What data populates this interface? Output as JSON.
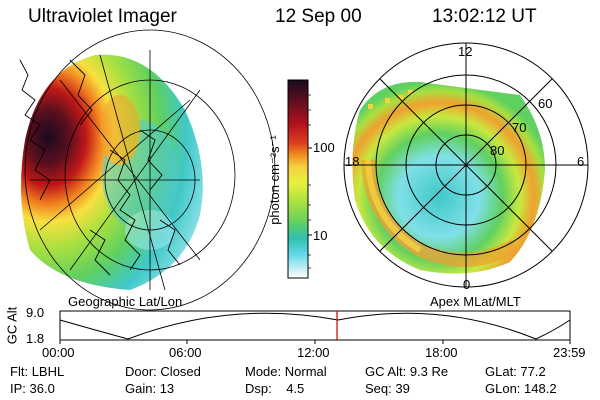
{
  "header": {
    "title": "Ultraviolet Imager",
    "date": "12 Sep 00",
    "time": "13:02:12 UT"
  },
  "geo_panel": {
    "label": "Geographic Lat/Lon"
  },
  "apex_panel": {
    "label": "Apex MLat/MLT",
    "mlt_labels": {
      "top": "12",
      "bottom": "0",
      "left": "18",
      "right": "6"
    },
    "lat_labels": [
      "60",
      "70",
      "80"
    ]
  },
  "colorbar": {
    "unit_label": "photon cm⁻²s⁻¹",
    "ticks": [
      "100",
      "10"
    ],
    "colors": [
      "#1a0a1e",
      "#5a0f1e",
      "#a0101e",
      "#d84020",
      "#f09020",
      "#f8d040",
      "#e8f040",
      "#a8e040",
      "#60d060",
      "#30c0b0",
      "#50d0e0",
      "#a0e8f0",
      "#ffffff"
    ]
  },
  "altitude_plot": {
    "ylabel": "GC Alt",
    "yticks": [
      "9.0",
      "1.8"
    ],
    "xticks": [
      "00:00",
      "06:00",
      "12:00",
      "18:00",
      "23:59"
    ],
    "current_time_marker_color": "#cc0000"
  },
  "info": {
    "flt": {
      "label": "Flt:",
      "value": "LBHL"
    },
    "ip": {
      "label": "IP:",
      "value": "36.0"
    },
    "door": {
      "label": "Door:",
      "value": "Closed"
    },
    "gain": {
      "label": "Gain:",
      "value": "13"
    },
    "mode": {
      "label": "Mode:",
      "value": "Normal"
    },
    "dsp": {
      "label": "Dsp:",
      "value": "4.5"
    },
    "gcalt": {
      "label": "GC Alt:",
      "value": "9.3 Re"
    },
    "seq": {
      "label": "Seq:",
      "value": "39"
    },
    "glat": {
      "label": "GLat:",
      "value": "77.2"
    },
    "glon": {
      "label": "GLon:",
      "value": "148.2"
    }
  }
}
